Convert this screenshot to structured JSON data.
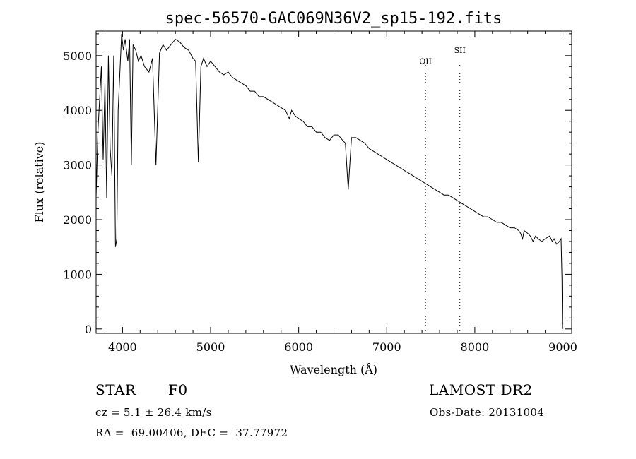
{
  "chart_data": {
    "type": "line",
    "title": "spec-56570-GAC069N36V2_sp15-192.fits",
    "xlabel": "Wavelength (Å)",
    "ylabel": "Flux (relative)",
    "xlim": [
      3700,
      9100
    ],
    "ylim": [
      -80,
      5450
    ],
    "x_ticks": [
      4000,
      5000,
      6000,
      7000,
      8000,
      9000
    ],
    "y_ticks": [
      0,
      1000,
      2000,
      3000,
      4000,
      5000
    ],
    "x_tick_labels": [
      "4000",
      "5000",
      "6000",
      "7000",
      "8000",
      "9000"
    ],
    "y_tick_labels": [
      "0",
      "1000",
      "2000",
      "3000",
      "4000",
      "5000"
    ],
    "series": [
      {
        "x": [
          3700,
          3720,
          3740,
          3760,
          3780,
          3800,
          3820,
          3840,
          3860,
          3880,
          3900,
          3920,
          3935,
          3950,
          3970,
          3990,
          4010,
          4030,
          4060,
          4080,
          4100,
          4120,
          4150,
          4180,
          4210,
          4250,
          4300,
          4340,
          4380,
          4420,
          4460,
          4500,
          4550,
          4600,
          4650,
          4700,
          4750,
          4800,
          4830,
          4861,
          4890,
          4920,
          4960,
          5000,
          5050,
          5100,
          5150,
          5200,
          5250,
          5300,
          5350,
          5400,
          5450,
          5500,
          5550,
          5600,
          5650,
          5700,
          5750,
          5800,
          5850,
          5893,
          5920,
          5960,
          6000,
          6050,
          6100,
          6150,
          6200,
          6250,
          6300,
          6350,
          6400,
          6450,
          6500,
          6530,
          6563,
          6600,
          6650,
          6700,
          6750,
          6800,
          6850,
          6900,
          6950,
          7000,
          7050,
          7100,
          7150,
          7200,
          7250,
          7300,
          7350,
          7400,
          7450,
          7500,
          7550,
          7600,
          7650,
          7700,
          7750,
          7800,
          7850,
          7900,
          7950,
          8000,
          8050,
          8100,
          8150,
          8200,
          8250,
          8300,
          8350,
          8400,
          8450,
          8498,
          8520,
          8542,
          8560,
          8600,
          8630,
          8662,
          8690,
          8720,
          8760,
          8800,
          8850,
          8880,
          8900,
          8930,
          8960,
          8980,
          8990,
          8995
        ],
        "y": [
          2400,
          3600,
          4200,
          4800,
          3100,
          4500,
          2400,
          5000,
          3300,
          2800,
          5000,
          1500,
          1650,
          4000,
          4700,
          5400,
          5100,
          5300,
          4900,
          5300,
          3000,
          5200,
          5100,
          4900,
          5000,
          4800,
          4700,
          4950,
          3000,
          5050,
          5200,
          5100,
          5200,
          5300,
          5250,
          5150,
          5100,
          4950,
          4900,
          3050,
          4800,
          4950,
          4800,
          4900,
          4800,
          4700,
          4650,
          4700,
          4600,
          4550,
          4500,
          4450,
          4350,
          4350,
          4250,
          4250,
          4200,
          4150,
          4100,
          4050,
          4000,
          3850,
          4000,
          3900,
          3850,
          3800,
          3700,
          3700,
          3600,
          3600,
          3500,
          3450,
          3550,
          3550,
          3450,
          3400,
          2550,
          3500,
          3500,
          3450,
          3400,
          3300,
          3250,
          3200,
          3150,
          3100,
          3050,
          3000,
          2950,
          2900,
          2850,
          2800,
          2750,
          2700,
          2650,
          2600,
          2550,
          2500,
          2450,
          2450,
          2400,
          2350,
          2300,
          2250,
          2200,
          2150,
          2100,
          2050,
          2050,
          2000,
          1950,
          1950,
          1900,
          1850,
          1850,
          1800,
          1750,
          1650,
          1800,
          1750,
          1700,
          1600,
          1700,
          1650,
          1600,
          1650,
          1700,
          1600,
          1650,
          1550,
          1600,
          1650,
          900,
          0
        ]
      }
    ],
    "line_annotations": [
      {
        "label": "OII",
        "x": 7440,
        "label_y": 4850
      },
      {
        "label": "SII",
        "x": 7830,
        "label_y": 5050
      }
    ]
  },
  "info": {
    "class": "STAR",
    "subclass": "F0",
    "survey": "LAMOST DR2",
    "cz": "cz = 5.1 ± 26.4 km/s",
    "obs_date": "Obs-Date: 20131004",
    "radec": "RA =  69.00406, DEC =  37.77972"
  }
}
